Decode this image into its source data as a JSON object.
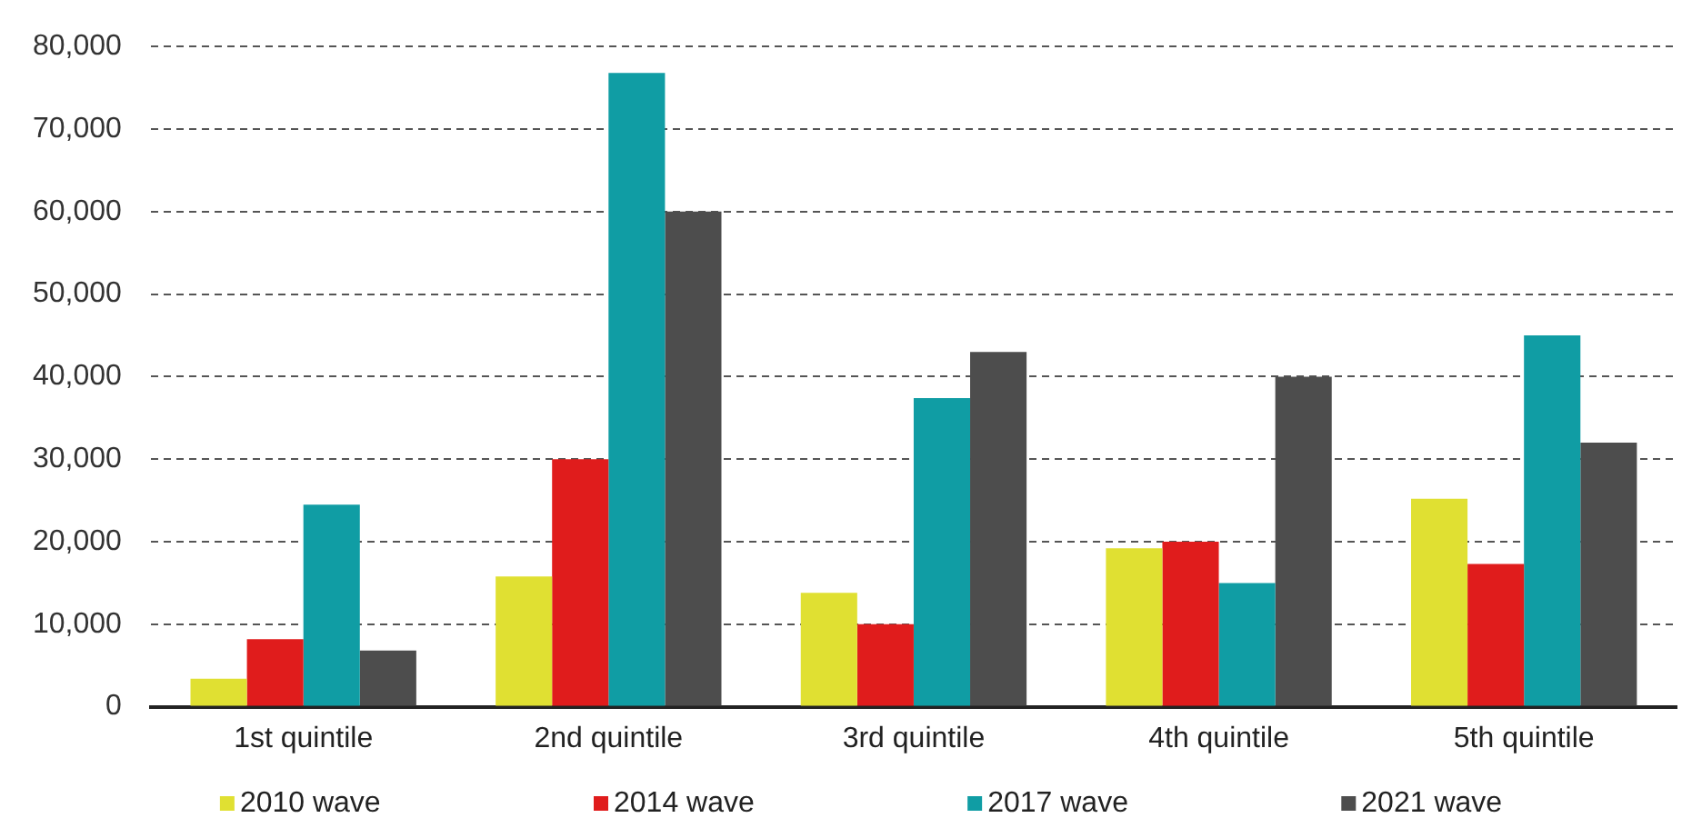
{
  "chart_data": {
    "type": "bar",
    "categories": [
      "1st quintile",
      "2nd quintile",
      "3rd quintile",
      "4th quintile",
      "5th quintile"
    ],
    "series": [
      {
        "name": "2010 wave",
        "color": "#e0e032",
        "values": [
          3400,
          15800,
          13800,
          19200,
          25200
        ]
      },
      {
        "name": "2014 wave",
        "color": "#e01c1c",
        "values": [
          8200,
          30000,
          10000,
          20000,
          17300
        ]
      },
      {
        "name": "2017 wave",
        "color": "#109da4",
        "values": [
          24500,
          76800,
          37400,
          15000,
          45000
        ]
      },
      {
        "name": "2021 wave",
        "color": "#4d4d4d",
        "values": [
          6800,
          60000,
          43000,
          40000,
          32000
        ]
      }
    ],
    "ylim": [
      0,
      80000
    ],
    "yticks": [
      0,
      {
        "value": 10000,
        "label": "10,000"
      },
      {
        "value": 20000,
        "label": "20,000"
      },
      {
        "value": 30000,
        "label": "30,000"
      },
      {
        "value": 40000,
        "label": "40,000"
      },
      {
        "value": 50000,
        "label": "50,000"
      },
      {
        "value": 60000,
        "label": "60,000"
      },
      {
        "value": 70000,
        "label": "70,000"
      },
      {
        "value": 80000,
        "label": "80,000"
      }
    ],
    "grid": "y",
    "legend": "bottom"
  }
}
